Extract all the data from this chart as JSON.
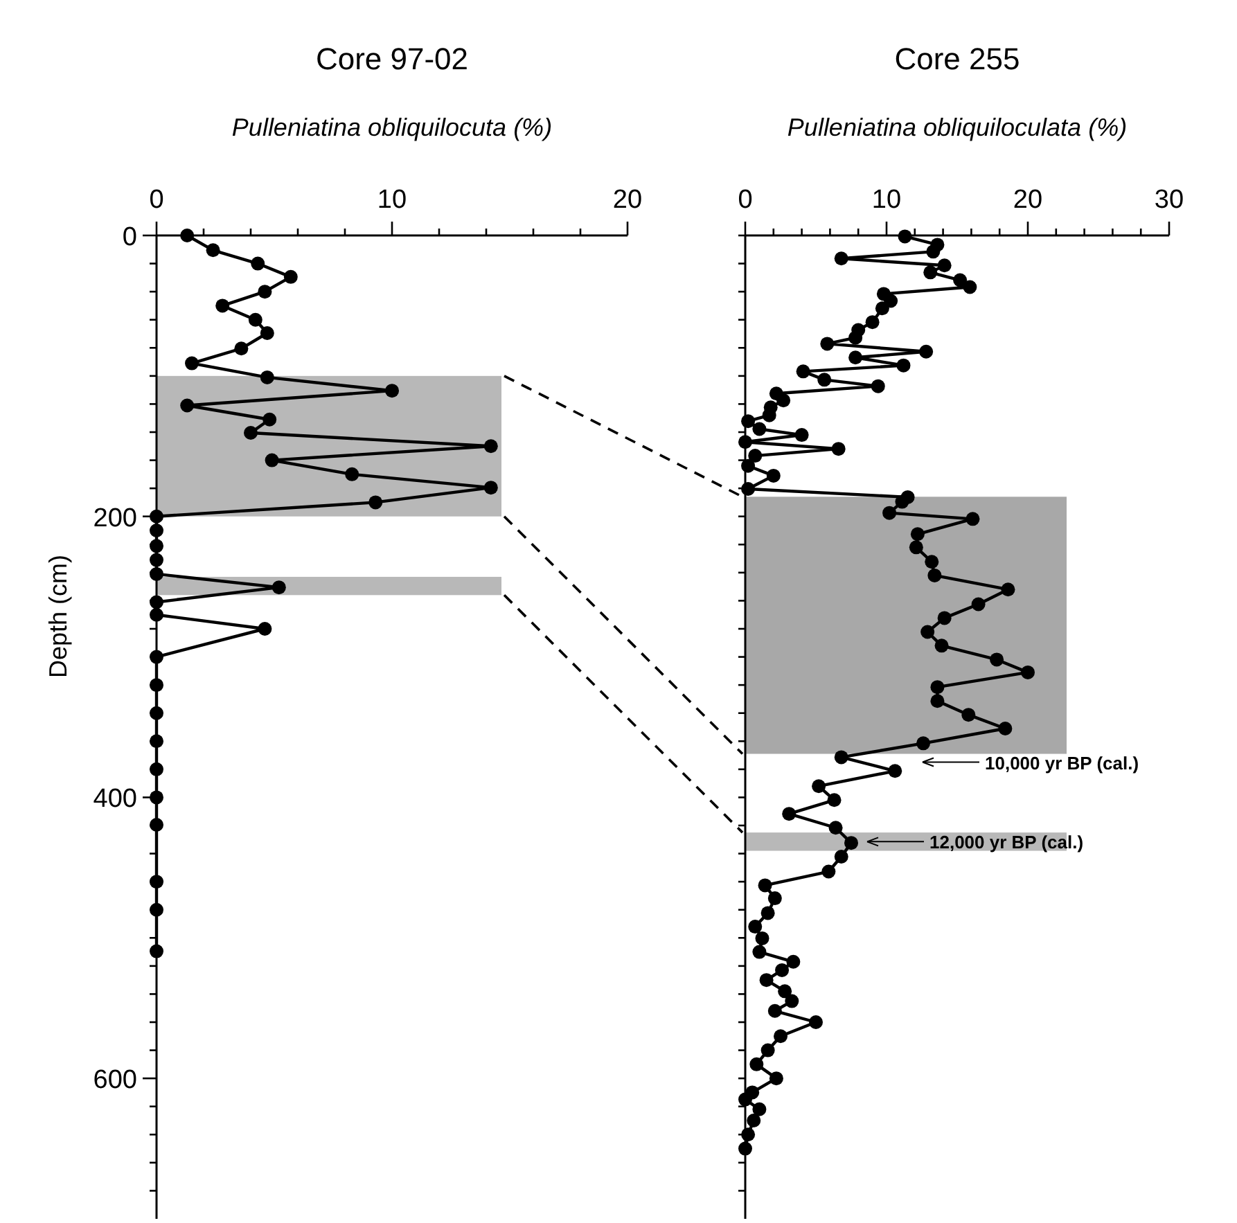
{
  "chart_data": [
    {
      "type": "line",
      "title": "Core 97-02",
      "xlabel": "Pulleniatina obliquilocuta (%)",
      "ylabel": "Depth (cm)",
      "orientation": "horizontal",
      "marker": "circle",
      "line_style": "solid",
      "grid": false,
      "xlim": [
        0,
        20
      ],
      "xticks": [
        0,
        {
          "value": 2,
          "label": null
        },
        {
          "value": 4,
          "label": null
        },
        {
          "value": 6,
          "label": null
        },
        {
          "value": 8,
          "label": null
        },
        10,
        {
          "value": 12,
          "label": null
        },
        {
          "value": 14,
          "label": null
        },
        {
          "value": 16,
          "label": null
        },
        {
          "value": 18,
          "label": null
        },
        20
      ],
      "ylim": [
        700,
        0
      ],
      "yticks": [
        0,
        {
          "value": 20,
          "label": null
        },
        {
          "value": 40,
          "label": null
        },
        {
          "value": 60,
          "label": null
        },
        {
          "value": 80,
          "label": null
        },
        {
          "value": 100,
          "label": null
        },
        {
          "value": 120,
          "label": null
        },
        {
          "value": 140,
          "label": null
        },
        {
          "value": 160,
          "label": null
        },
        {
          "value": 180,
          "label": null
        },
        200,
        {
          "value": 220,
          "label": null
        },
        {
          "value": 240,
          "label": null
        },
        {
          "value": 260,
          "label": null
        },
        {
          "value": 280,
          "label": null
        },
        {
          "value": 300,
          "label": null
        },
        {
          "value": 320,
          "label": null
        },
        {
          "value": 340,
          "label": null
        },
        {
          "value": 360,
          "label": null
        },
        {
          "value": 380,
          "label": null
        },
        400,
        {
          "value": 420,
          "label": null
        },
        {
          "value": 440,
          "label": null
        },
        {
          "value": 460,
          "label": null
        },
        {
          "value": 480,
          "label": null
        },
        {
          "value": 500,
          "label": null
        },
        {
          "value": 520,
          "label": null
        },
        {
          "value": 540,
          "label": null
        },
        {
          "value": 560,
          "label": null
        },
        {
          "value": 580,
          "label": null
        },
        600,
        {
          "value": 620,
          "label": null
        },
        {
          "value": 640,
          "label": null
        },
        {
          "value": 660,
          "label": null
        },
        {
          "value": 680,
          "label": null
        }
      ],
      "bands": [
        {
          "axis": "y",
          "from": 100,
          "to": 200,
          "color": "#b8b8b8"
        },
        {
          "axis": "y",
          "from": 243,
          "to": 256,
          "color": "#b8b8b8"
        }
      ],
      "series": [
        {
          "color": "#000000",
          "x": [
            0,
            10.5,
            20,
            29.5,
            40,
            50,
            60,
            69.5,
            80.5,
            91,
            101,
            110.5,
            121,
            131,
            140.5,
            150,
            160,
            170,
            179.5,
            190,
            200,
            210,
            221,
            231,
            241,
            250.5,
            261,
            270,
            280,
            300,
            320,
            340,
            360,
            380,
            400,
            419.5,
            460,
            480,
            509.5
          ],
          "values": [
            1.3,
            2.4,
            4.3,
            5.7,
            4.6,
            2.8,
            4.2,
            4.7,
            3.6,
            1.5,
            4.7,
            10,
            1.3,
            4.8,
            4,
            14.2,
            4.9,
            8.3,
            14.2,
            9.3,
            0,
            0,
            0,
            0,
            0,
            5.2,
            0,
            0,
            4.6,
            0,
            0,
            0,
            0,
            0,
            0,
            0,
            0,
            0,
            0
          ]
        }
      ]
    },
    {
      "type": "line",
      "title": "Core 255",
      "xlabel": "Pulleniatina obliquiloculata (%)",
      "orientation": "horizontal",
      "marker": "circle",
      "line_style": "solid",
      "grid": false,
      "tick_labels": "x",
      "xlim": [
        0,
        30
      ],
      "xticks": [
        0,
        {
          "value": 2,
          "label": null
        },
        {
          "value": 4,
          "label": null
        },
        {
          "value": 6,
          "label": null
        },
        {
          "value": 8,
          "label": null
        },
        10,
        {
          "value": 12,
          "label": null
        },
        {
          "value": 14,
          "label": null
        },
        {
          "value": 16,
          "label": null
        },
        {
          "value": 18,
          "label": null
        },
        20,
        {
          "value": 22,
          "label": null
        },
        {
          "value": 24,
          "label": null
        },
        {
          "value": 26,
          "label": null
        },
        {
          "value": 28,
          "label": null
        },
        30
      ],
      "ylim": [
        700,
        0
      ],
      "yticks": [
        {
          "value": 0,
          "label": null
        },
        {
          "value": 20,
          "label": null
        },
        {
          "value": 40,
          "label": null
        },
        {
          "value": 60,
          "label": null
        },
        {
          "value": 80,
          "label": null
        },
        {
          "value": 100,
          "label": null
        },
        {
          "value": 120,
          "label": null
        },
        {
          "value": 140,
          "label": null
        },
        {
          "value": 160,
          "label": null
        },
        {
          "value": 180,
          "label": null
        },
        {
          "value": 200,
          "label": null
        },
        {
          "value": 220,
          "label": null
        },
        {
          "value": 240,
          "label": null
        },
        {
          "value": 260,
          "label": null
        },
        {
          "value": 280,
          "label": null
        },
        {
          "value": 300,
          "label": null
        },
        {
          "value": 320,
          "label": null
        },
        {
          "value": 340,
          "label": null
        },
        {
          "value": 360,
          "label": null
        },
        {
          "value": 380,
          "label": null
        },
        {
          "value": 400,
          "label": null
        },
        {
          "value": 420,
          "label": null
        },
        {
          "value": 440,
          "label": null
        },
        {
          "value": 460,
          "label": null
        },
        {
          "value": 480,
          "label": null
        },
        {
          "value": 500,
          "label": null
        },
        {
          "value": 520,
          "label": null
        },
        {
          "value": 540,
          "label": null
        },
        {
          "value": 560,
          "label": null
        },
        {
          "value": 580,
          "label": null
        },
        {
          "value": 600,
          "label": null
        },
        {
          "value": 620,
          "label": null
        },
        {
          "value": 640,
          "label": null
        },
        {
          "value": 660,
          "label": null
        },
        {
          "value": 680,
          "label": null
        }
      ],
      "bands": [
        {
          "axis": "y",
          "from": 186,
          "to": 369,
          "color": "#a8a8a8"
        },
        {
          "axis": "y",
          "from": 425,
          "to": 438,
          "color": "#b8b8b8"
        }
      ],
      "annotations": [
        "10,000 yr BP (cal.)",
        "12,000 yr BP (cal.)"
      ],
      "series": [
        {
          "color": "#000000",
          "x": [
            0.7,
            6.6,
            11.5,
            16.4,
            21.3,
            26.3,
            31.8,
            36.7,
            41.6,
            46.6,
            51.9,
            61.7,
            67.3,
            72.8,
            77.1,
            82.7,
            86.9,
            92.5,
            96.8,
            102.7,
            107.3,
            112.5,
            117.4,
            122.4,
            128,
            132.2,
            137.8,
            142,
            147,
            151.9,
            156.8,
            164,
            171,
            180.4,
            186.3,
            189.6,
            197.5,
            201.8,
            212.6,
            222,
            232.3,
            242,
            252,
            262.5,
            272.3,
            282.2,
            292,
            301.9,
            311,
            321.5,
            331.4,
            341.2,
            351,
            361.5,
            371.4,
            381.2,
            392,
            401.9,
            411.7,
            421.6,
            432.4,
            442.2,
            452.8,
            462.6,
            471.8,
            482.3,
            492,
            500.3,
            510,
            517,
            523,
            530,
            538,
            545,
            552,
            560,
            570,
            580,
            590,
            600,
            610,
            615,
            622,
            630,
            640,
            650
          ],
          "values": [
            11.3,
            13.6,
            13.3,
            6.8,
            14.1,
            13.1,
            15.2,
            15.9,
            9.8,
            10.3,
            9.7,
            9,
            8,
            7.8,
            5.8,
            12.8,
            7.8,
            11.2,
            4.1,
            5.6,
            9.4,
            2.2,
            2.7,
            1.8,
            1.7,
            0.2,
            1,
            4,
            0,
            6.6,
            0.7,
            0.2,
            2,
            0.2,
            11.5,
            11.1,
            10.2,
            16.1,
            12.2,
            12.1,
            13.2,
            13.4,
            18.6,
            16.5,
            14.1,
            12.9,
            13.9,
            17.8,
            20,
            13.6,
            13.6,
            15.8,
            18.4,
            12.6,
            6.8,
            10.6,
            5.2,
            6.3,
            3.1,
            6.4,
            7.5,
            6.8,
            5.9,
            1.4,
            2.1,
            1.6,
            0.7,
            1.2,
            1,
            3.4,
            2.6,
            1.5,
            2.8,
            3.3,
            2.1,
            5,
            2.5,
            1.6,
            0.8,
            2.2,
            0.5,
            0,
            1,
            0.6,
            0.2,
            0
          ]
        }
      ]
    }
  ]
}
